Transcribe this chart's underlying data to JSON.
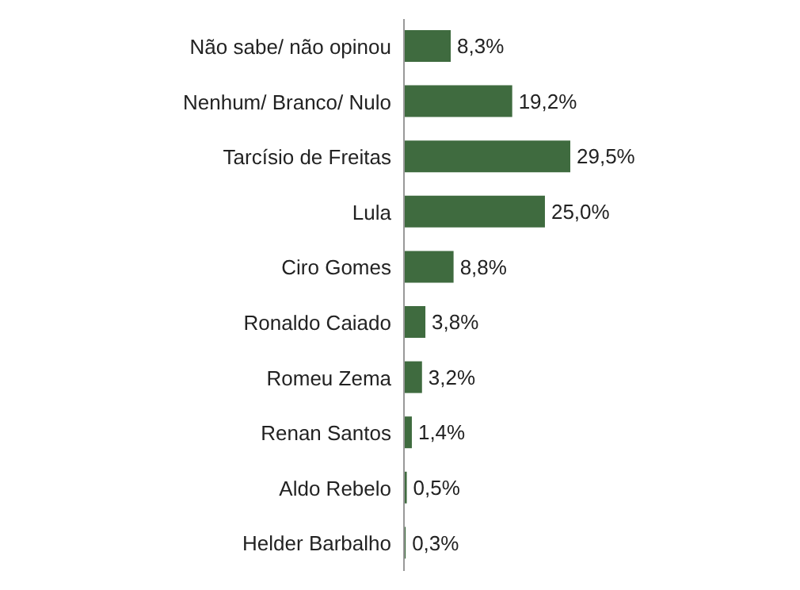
{
  "chart_data": {
    "type": "bar",
    "orientation": "horizontal",
    "categories": [
      "Não sabe/ não opinou",
      "Nenhum/ Branco/ Nulo",
      "Tarcísio de Freitas",
      "Lula",
      "Ciro Gomes",
      "Ronaldo Caiado",
      "Romeu Zema",
      "Renan Santos",
      "Aldo Rebelo",
      "Helder Barbalho"
    ],
    "values": [
      8.3,
      19.2,
      29.5,
      25.0,
      8.8,
      3.8,
      3.2,
      1.4,
      0.5,
      0.3
    ],
    "value_labels": [
      "8,3%",
      "19,2%",
      "29,5%",
      "25,0%",
      "8,8%",
      "3,8%",
      "3,2%",
      "1,4%",
      "0,5%",
      "0,3%"
    ],
    "color": "#3f6b3f",
    "grid": false,
    "legend": false
  }
}
